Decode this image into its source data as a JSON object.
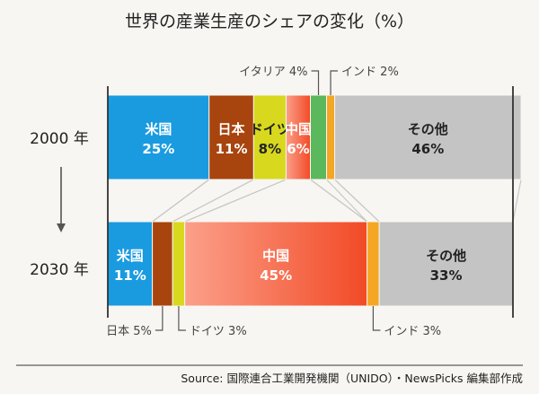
{
  "chart_data": {
    "type": "bar",
    "subtype": "stacked-100-horizontal",
    "title": "世界の産業生産のシェアの変化（%）",
    "categories": [
      "2000 年",
      "2030 年"
    ],
    "unit": "%",
    "xlim": [
      0,
      100
    ],
    "series": [
      {
        "name": "米国",
        "color": "#1a9be0",
        "values": [
          25,
          11
        ],
        "label_color": "#ffffff"
      },
      {
        "name": "日本",
        "color": "#a8440d",
        "values": [
          11,
          5
        ],
        "label_color": "#ffffff"
      },
      {
        "name": "ドイツ",
        "color": "#d8d81e",
        "values": [
          8,
          3
        ],
        "label_color": "#222222"
      },
      {
        "name": "中国",
        "color": "#f24a26",
        "color_light": "#fba08a",
        "gradient": true,
        "values": [
          6,
          45
        ],
        "label_color": "#ffffff"
      },
      {
        "name": "イタリア",
        "color": "#5cb85c",
        "values": [
          4,
          0
        ],
        "label_color": "#222222"
      },
      {
        "name": "インド",
        "color": "#f5a623",
        "values": [
          2,
          3
        ],
        "label_color": "#222222"
      },
      {
        "name": "その他",
        "color": "#c4c4c4",
        "values": [
          46,
          33
        ],
        "label_color": "#222222"
      }
    ],
    "inside_labels": [
      {
        "row": 0,
        "series": "米国",
        "name": "米国",
        "value": "25%"
      },
      {
        "row": 0,
        "series": "日本",
        "name": "日本",
        "value": "11%"
      },
      {
        "row": 0,
        "series": "ドイツ",
        "name": "ドイツ",
        "value": "8%"
      },
      {
        "row": 0,
        "series": "中国",
        "name": "中国",
        "value": "6%"
      },
      {
        "row": 0,
        "series": "その他",
        "name": "その他",
        "value": "46%"
      },
      {
        "row": 1,
        "series": "米国",
        "name": "米国",
        "value": "11%"
      },
      {
        "row": 1,
        "series": "中国",
        "name": "中国",
        "value": "45%"
      },
      {
        "row": 1,
        "series": "その他",
        "name": "その他",
        "value": "33%"
      }
    ],
    "callouts": [
      {
        "row": 0,
        "series": "イタリア",
        "text": "イタリア 4%",
        "side": "top",
        "align": "left"
      },
      {
        "row": 0,
        "series": "インド",
        "text": "インド 2%",
        "side": "top",
        "align": "right"
      },
      {
        "row": 1,
        "series": "日本",
        "text": "日本 5%",
        "side": "bottom",
        "align": "left"
      },
      {
        "row": 1,
        "series": "ドイツ",
        "text": "ドイツ 3%",
        "side": "bottom",
        "align": "right"
      },
      {
        "row": 1,
        "series": "インド",
        "text": "インド 3%",
        "side": "bottom",
        "align": "right"
      }
    ],
    "annotations": [
      "arrow from 2000 年 to 2030 年",
      "connector lines between matching segments"
    ],
    "source": "Source: 国際連合工業開発機関（UNIDO）・NewsPicks 編集部作成",
    "grid": false,
    "legend": "none"
  }
}
